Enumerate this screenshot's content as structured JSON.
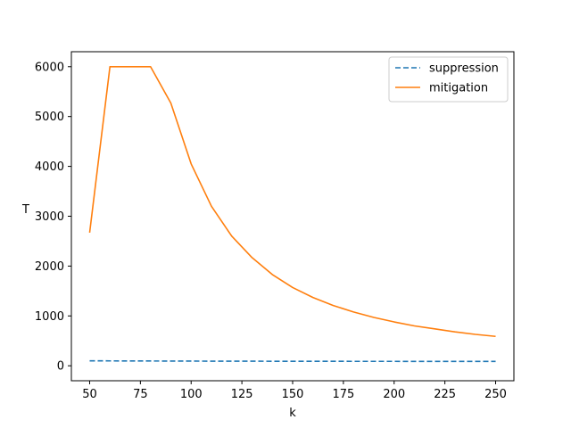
{
  "chart_data": {
    "type": "line",
    "title": "",
    "xlabel": "k",
    "ylabel": "T",
    "xlim": [
      41,
      259
    ],
    "ylim": [
      -300,
      6300
    ],
    "xticks": [
      50,
      75,
      100,
      125,
      150,
      175,
      200,
      225,
      250
    ],
    "yticks": [
      0,
      1000,
      2000,
      3000,
      4000,
      5000,
      6000
    ],
    "grid": false,
    "legend_position": "top-right",
    "x": [
      50,
      60,
      70,
      80,
      90,
      100,
      110,
      120,
      130,
      140,
      150,
      160,
      170,
      180,
      190,
      200,
      210,
      220,
      230,
      240,
      250
    ],
    "series": [
      {
        "name": "suppression",
        "color": "#1f77b4",
        "style": "dashed",
        "values": [
          100,
          98,
          97,
          96,
          95,
          94,
          93,
          92,
          92,
          91,
          91,
          90,
          90,
          89,
          89,
          89,
          88,
          88,
          88,
          87,
          87
        ]
      },
      {
        "name": "mitigation",
        "color": "#ff7f0e",
        "style": "solid",
        "values": [
          2670,
          6000,
          6000,
          6000,
          5270,
          4050,
          3200,
          2600,
          2170,
          1830,
          1570,
          1370,
          1210,
          1080,
          970,
          880,
          800,
          740,
          680,
          630,
          590
        ]
      }
    ]
  }
}
